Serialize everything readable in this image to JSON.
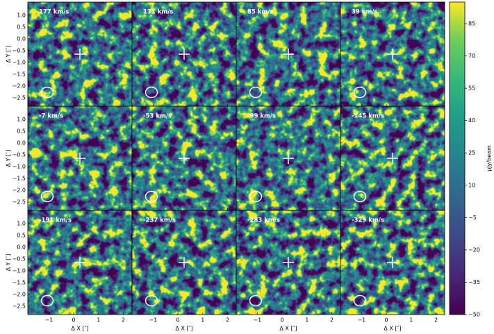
{
  "chart_data": {
    "type": "channel_map",
    "panels": [
      "177 km/s",
      "131 km/s",
      "85 km/s",
      "39 km/s",
      "-7 km/s",
      "-53 km/s",
      "-99 km/s",
      "-145 km/s",
      "-191 km/s",
      "-237 km/s",
      "-283 km/s",
      "-329 km/s"
    ],
    "xlabel": "Δ X [″]",
    "ylabel": "Δ Y [″]",
    "xlim": [
      -1.85,
      2.35
    ],
    "ylim": [
      -2.85,
      1.55
    ],
    "xticks": [
      {
        "value": -1,
        "label": "−1"
      },
      0,
      1,
      2
    ],
    "yticks": [
      {
        "value": 1,
        "label": "1.0"
      },
      {
        "value": 0.5,
        "label": "0.5"
      },
      {
        "value": 0,
        "label": "0.0"
      },
      {
        "value": -0.5,
        "label": "−0.5"
      },
      {
        "value": -1,
        "label": "−1.0"
      },
      {
        "value": -1.5,
        "label": "−1.5"
      },
      {
        "value": -2,
        "label": "−2.0"
      },
      {
        "value": -2.5,
        "label": "−2.5"
      }
    ],
    "colorbar": {
      "label": "μJy/beam",
      "lim": [
        -50,
        95
      ],
      "ticks": [
        85,
        70,
        55,
        40,
        25,
        10,
        {
          "value": -5,
          "label": "−5"
        },
        {
          "value": -20,
          "label": "−20"
        },
        {
          "value": -35,
          "label": "−35"
        },
        {
          "value": -50,
          "label": "−50"
        }
      ]
    }
  }
}
